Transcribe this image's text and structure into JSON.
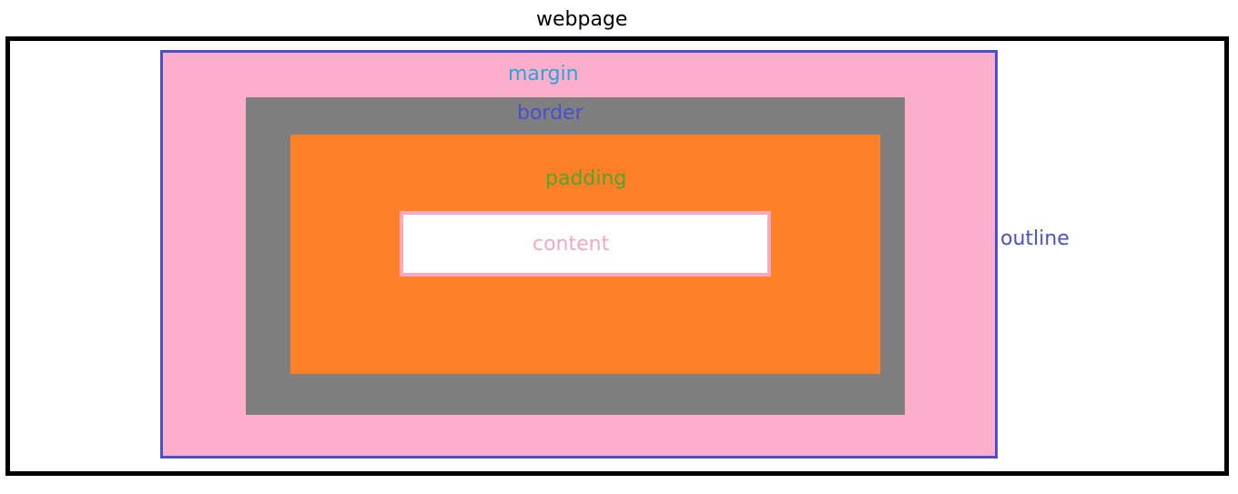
{
  "labels": {
    "webpage": "webpage",
    "margin": "margin",
    "border": "border",
    "padding": "padding",
    "content": "content",
    "outline": "outline"
  },
  "colors": {
    "webpage_frame": "#000000",
    "outline": "#4a4fd0",
    "margin_fill": "#fcaecb",
    "border_fill": "#7f7f7f",
    "padding_fill": "#fd7f27",
    "content_fill": "#ffffff",
    "content_border": "#f9a8c0",
    "webpage_text": "#000000",
    "margin_text": "#2aa4dc",
    "border_text": "#4a4fd0",
    "padding_text": "#4ea72a",
    "content_text": "#f4a7c0",
    "outline_text": "#4a4fd0"
  }
}
